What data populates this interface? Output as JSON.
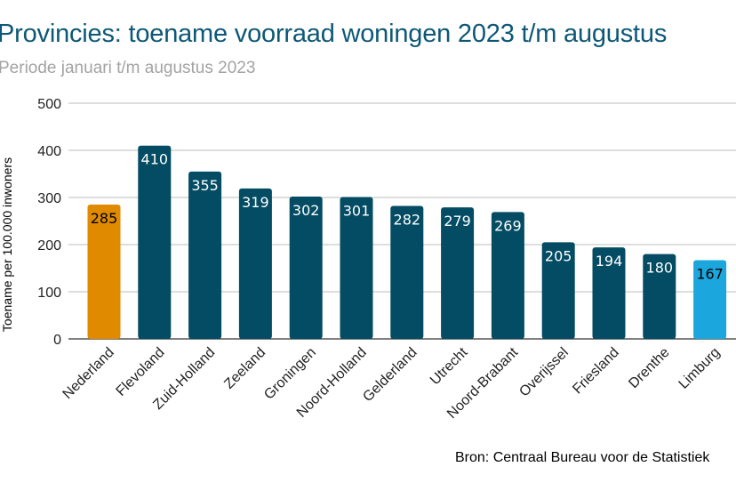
{
  "title": "Provincies: toename voorraad woningen 2023 t/m augustus",
  "subtitle": "Periode januari t/m augustus 2023",
  "source": "Bron: Centraal Bureau voor de Statistiek",
  "chart_data": {
    "type": "bar",
    "title": "Provincies: toename voorraad woningen 2023 t/m augustus",
    "subtitle": "Periode januari t/m augustus 2023",
    "xlabel": "",
    "ylabel": "Toename per 100.000 inwoners",
    "ylim": [
      0,
      500
    ],
    "yticks": [
      0,
      100,
      200,
      300,
      400,
      500
    ],
    "grid": true,
    "categories": [
      "Nederland",
      "Flevoland",
      "Zuid-Holland",
      "Zeeland",
      "Groningen",
      "Noord-Holland",
      "Gelderland",
      "Utrecht",
      "Noord-Brabant",
      "Overijssel",
      "Friesland",
      "Drenthe",
      "Limburg"
    ],
    "values": [
      285,
      410,
      355,
      319,
      302,
      301,
      282,
      279,
      269,
      205,
      194,
      180,
      167
    ],
    "colors": [
      "#e08a00",
      "#034c63",
      "#034c63",
      "#034c63",
      "#034c63",
      "#034c63",
      "#034c63",
      "#034c63",
      "#034c63",
      "#034c63",
      "#034c63",
      "#034c63",
      "#1ba7dd"
    ],
    "label_colors": [
      "#000000",
      "#ffffff",
      "#ffffff",
      "#ffffff",
      "#ffffff",
      "#ffffff",
      "#ffffff",
      "#ffffff",
      "#ffffff",
      "#ffffff",
      "#ffffff",
      "#ffffff",
      "#000000"
    ]
  }
}
